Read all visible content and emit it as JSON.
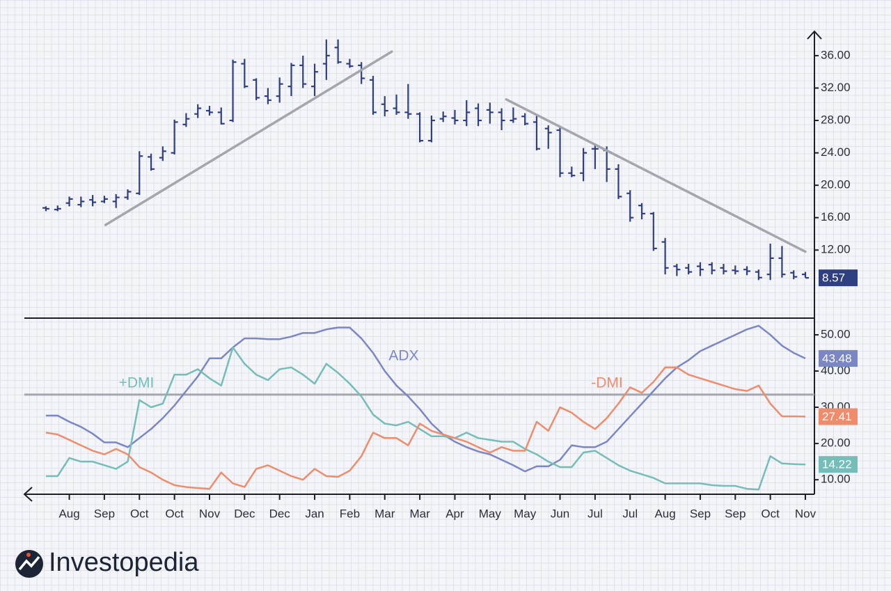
{
  "chart_data": [
    {
      "type": "ohlc",
      "color": "#2f3f82",
      "ylim": [
        3.6,
        39
      ],
      "yticks": [
        {
          "value": 12,
          "label": "12.00"
        },
        {
          "value": 16,
          "label": "16.00"
        },
        {
          "value": 20,
          "label": "20.00"
        },
        {
          "value": 24,
          "label": "24.00"
        },
        {
          "value": 28,
          "label": "28.00"
        },
        {
          "value": 32,
          "label": "32.00"
        },
        {
          "value": 36,
          "label": "36.00"
        }
      ],
      "series": [
        {
          "open": [
            17.2,
            17.0,
            17.8,
            17.6,
            18.2,
            18.0,
            18.0,
            18.5,
            19.0,
            23.5,
            23.4,
            24.0,
            27.5,
            28.8,
            29.2,
            29.0,
            28.0,
            35.0,
            33.0,
            31.0,
            31.0,
            32.2,
            34.8,
            32.2,
            35.0,
            37.0,
            35.0,
            34.8,
            33.0,
            30.0,
            29.5,
            29.0,
            28.8,
            25.5,
            28.2,
            28.3,
            28.0,
            29.5,
            29.3,
            29.0,
            28.0,
            28.5,
            27.8,
            27.0,
            26.8,
            21.5,
            21.5,
            24.5,
            24.3,
            22.0,
            19.0,
            17.5,
            16.5,
            13.0,
            10.0,
            9.8,
            10.0,
            10.2,
            9.8,
            9.5,
            9.6,
            9.3,
            9.0,
            11.0,
            9.2,
            9.0
          ],
          "high": [
            17.4,
            17.5,
            18.6,
            18.6,
            18.8,
            18.7,
            18.9,
            19.5,
            24.2,
            23.9,
            24.8,
            28.1,
            28.9,
            30.0,
            29.8,
            29.6,
            35.5,
            35.6,
            33.2,
            32.0,
            33.3,
            35.1,
            36.0,
            35.0,
            38.0,
            38.0,
            35.6,
            35.2,
            33.5,
            31.0,
            31.2,
            32.5,
            29.0,
            28.6,
            29.1,
            29.3,
            30.5,
            30.1,
            30.2,
            29.5,
            29.6,
            28.9,
            28.6,
            27.4,
            27.1,
            22.3,
            24.6,
            24.9,
            24.8,
            22.6,
            19.4,
            17.8,
            16.7,
            13.5,
            10.3,
            10.3,
            10.5,
            10.5,
            10.3,
            10.1,
            10.0,
            9.6,
            12.8,
            12.5,
            9.5,
            9.3
          ],
          "low": [
            16.8,
            16.8,
            17.4,
            17.3,
            17.4,
            17.8,
            17.2,
            18.2,
            18.8,
            21.8,
            23.0,
            23.8,
            27.2,
            28.3,
            28.6,
            27.5,
            27.8,
            32.0,
            30.5,
            30.0,
            30.2,
            31.0,
            32.0,
            31.0,
            33.0,
            35.0,
            34.5,
            32.5,
            28.7,
            28.5,
            28.7,
            28.2,
            25.3,
            25.3,
            27.8,
            27.5,
            27.3,
            27.3,
            27.6,
            26.8,
            27.7,
            27.4,
            24.3,
            24.5,
            21.0,
            21.0,
            20.5,
            22.0,
            20.4,
            18.3,
            15.5,
            15.8,
            11.9,
            9.0,
            8.8,
            9.0,
            8.8,
            9.0,
            9.0,
            9.0,
            8.9,
            8.3,
            8.3,
            8.6,
            8.4,
            8.6
          ],
          "close": [
            17.1,
            17.1,
            18.3,
            18.0,
            17.9,
            18.3,
            18.5,
            19.2,
            23.6,
            22.0,
            24.2,
            27.8,
            28.2,
            29.5,
            29.0,
            27.6,
            35.2,
            32.2,
            30.8,
            30.5,
            32.5,
            34.8,
            32.5,
            34.0,
            36.0,
            35.2,
            34.7,
            33.2,
            29.0,
            29.2,
            29.0,
            28.8,
            25.5,
            28.0,
            28.5,
            28.0,
            29.0,
            28.0,
            29.0,
            28.0,
            28.2,
            27.6,
            24.5,
            26.5,
            21.5,
            21.2,
            24.0,
            24.5,
            22.0,
            18.6,
            16.0,
            16.5,
            12.2,
            9.8,
            9.6,
            9.3,
            9.6,
            9.5,
            9.4,
            9.4,
            9.4,
            8.6,
            11.0,
            9.0,
            8.7,
            8.57
          ]
        }
      ],
      "trend_lines": [
        {
          "color": "#a4a6ad",
          "x": [
            5.1,
            29.6
          ],
          "values": [
            15.1,
            36.5
          ]
        },
        {
          "color": "#a4a6ad",
          "x": [
            39.4,
            65
          ],
          "values": [
            30.6,
            11.8
          ]
        }
      ]
    },
    {
      "type": "line",
      "categories": [
        null,
        null,
        "Aug",
        null,
        null,
        "Sep",
        null,
        null,
        "Oct",
        null,
        null,
        "Oct",
        null,
        null,
        "Nov",
        null,
        null,
        "Dec",
        null,
        null,
        "Dec",
        null,
        null,
        "Jan",
        null,
        null,
        "Feb",
        null,
        null,
        "Mar",
        null,
        null,
        "Mar",
        null,
        null,
        "Apr",
        null,
        null,
        "May",
        null,
        null,
        "May",
        null,
        null,
        "Jun",
        null,
        null,
        "Jul",
        null,
        null,
        "Jul",
        null,
        null,
        "Aug",
        null,
        null,
        "Sep",
        null,
        null,
        "Sep",
        null,
        null,
        "Oct",
        null,
        null,
        "Nov"
      ],
      "ylim": [
        6,
        54.6
      ],
      "yticks": [
        {
          "value": 10,
          "label": "10.00"
        },
        {
          "value": 20,
          "label": "20.00"
        },
        {
          "value": 30,
          "label": "30.00"
        },
        {
          "value": 40,
          "label": "40.00"
        },
        {
          "value": 50,
          "label": "50.00"
        }
      ],
      "reference_line": {
        "value": 33.5,
        "color": "#a4a6ad"
      },
      "series": [
        {
          "name": "ADX",
          "color": "#7b86c4",
          "values": [
            27.7,
            27.7,
            26,
            24.6,
            22.7,
            20.3,
            20.3,
            19,
            21.5,
            24,
            27,
            30.5,
            34.5,
            38.5,
            43.5,
            43.5,
            46.5,
            49,
            49,
            48.8,
            48.8,
            49.5,
            50.5,
            50.5,
            51.5,
            52,
            52,
            49,
            45,
            40,
            36,
            33,
            29.5,
            25.5,
            22.5,
            20.5,
            19,
            17.8,
            17,
            15.5,
            14,
            12.3,
            13.7,
            13.7,
            15.5,
            19.5,
            19,
            19,
            20.5,
            24,
            27.5,
            31,
            34.5,
            38,
            41,
            43,
            45.5,
            47,
            48.5,
            50,
            51.5,
            52.5,
            50,
            47,
            45,
            43.48
          ]
        },
        {
          "name": "+DMI",
          "color": "#74bdb8",
          "values": [
            11,
            11,
            16,
            15,
            15,
            14,
            13,
            15,
            32,
            30,
            31,
            39,
            39,
            40.5,
            38,
            36,
            46.5,
            42,
            39,
            37.5,
            40.5,
            41,
            39,
            36.5,
            42,
            39.5,
            36.5,
            33,
            28,
            25.5,
            25,
            26,
            24,
            22,
            22,
            21.5,
            23,
            21.5,
            21,
            20.5,
            20.5,
            18.5,
            17,
            15,
            13.5,
            13.5,
            17.5,
            18,
            16,
            14,
            12.5,
            11.5,
            10.5,
            9,
            9,
            9,
            9,
            8.5,
            8.3,
            8.3,
            7.5,
            7.3,
            16.5,
            14.5,
            14.3,
            14.22
          ]
        },
        {
          "name": "-DMI",
          "color": "#ef8c6b",
          "values": [
            23,
            22.5,
            21,
            19.5,
            18,
            17,
            18.5,
            17,
            13.5,
            12,
            10,
            8.5,
            8,
            7.7,
            7.5,
            12,
            9,
            8,
            13,
            14,
            12.5,
            11,
            10,
            13,
            11,
            10.8,
            12.5,
            16.5,
            23,
            21.5,
            21.5,
            19.5,
            25.5,
            23.5,
            22.5,
            21.5,
            20.5,
            19,
            17.5,
            19,
            18,
            18,
            26,
            23.5,
            30,
            28.5,
            26,
            24,
            27,
            31,
            35.5,
            34,
            37,
            41,
            41,
            39,
            38,
            37,
            36,
            35,
            34.5,
            36,
            31,
            27.5,
            27.5,
            27.41
          ]
        }
      ]
    }
  ],
  "brand": "Investopedia"
}
